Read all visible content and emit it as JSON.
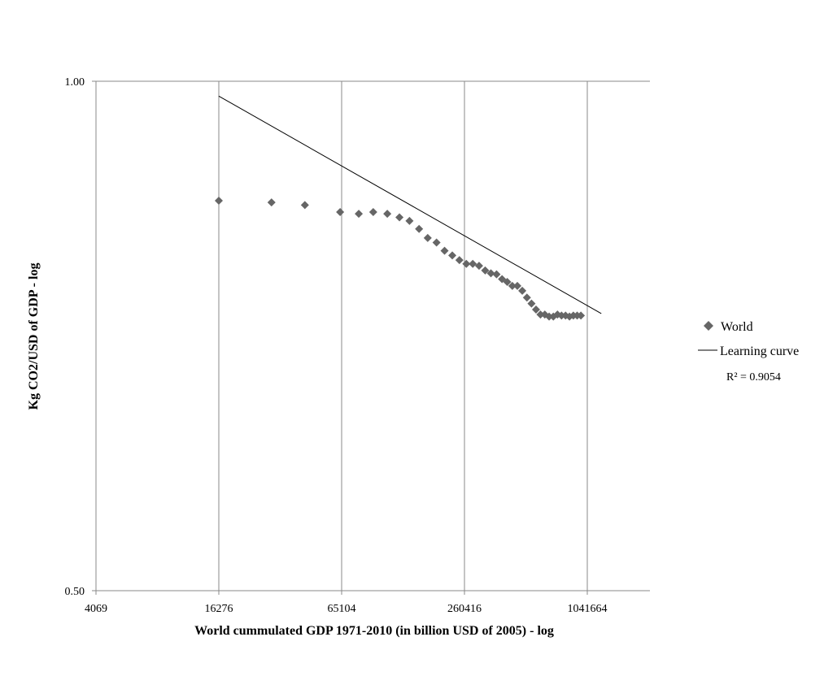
{
  "chart_data": {
    "type": "scatter",
    "title": "",
    "xlabel": "World cummulated GDP 1971-2010 (in billion USD of 2005) - log",
    "ylabel": "Kg CO2/USD of GDP - log",
    "x_scale": "log",
    "y_scale": "log",
    "xlim": [
      4069,
      1041664
    ],
    "ylim": [
      0.5,
      1.0
    ],
    "x_ticks": [
      "4069",
      "16276",
      "65104",
      "260416",
      "1041664"
    ],
    "y_ticks": [
      "1.00",
      "0.50"
    ],
    "grid": "vertical",
    "legend_position": "right",
    "series": [
      {
        "name": "World",
        "type": "scatter",
        "marker": "diamond",
        "color": "#666666",
        "points": [
          [
            16276,
            0.85
          ],
          [
            29500,
            0.848
          ],
          [
            43000,
            0.845
          ],
          [
            64000,
            0.837
          ],
          [
            79000,
            0.835
          ],
          [
            93000,
            0.837
          ],
          [
            109000,
            0.835
          ],
          [
            125000,
            0.831
          ],
          [
            140000,
            0.827
          ],
          [
            156000,
            0.818
          ],
          [
            172000,
            0.808
          ],
          [
            190000,
            0.803
          ],
          [
            208000,
            0.794
          ],
          [
            227000,
            0.789
          ],
          [
            246000,
            0.784
          ],
          [
            266000,
            0.78
          ],
          [
            286000,
            0.78
          ],
          [
            307000,
            0.778
          ],
          [
            329000,
            0.773
          ],
          [
            351000,
            0.77
          ],
          [
            374000,
            0.769
          ],
          [
            398000,
            0.764
          ],
          [
            422000,
            0.761
          ],
          [
            447000,
            0.757
          ],
          [
            473000,
            0.757
          ],
          [
            500000,
            0.752
          ],
          [
            527000,
            0.745
          ],
          [
            555000,
            0.739
          ],
          [
            584000,
            0.733
          ],
          [
            614000,
            0.728
          ],
          [
            645000,
            0.728
          ],
          [
            677000,
            0.726
          ],
          [
            710000,
            0.726
          ],
          [
            744000,
            0.728
          ],
          [
            779000,
            0.727
          ],
          [
            815000,
            0.727
          ],
          [
            852000,
            0.726
          ],
          [
            890000,
            0.727
          ],
          [
            929000,
            0.727
          ],
          [
            969000,
            0.727
          ]
        ]
      },
      {
        "name": "Learning curve",
        "type": "line",
        "color": "#000000",
        "x_range": [
          16276,
          1220000
        ],
        "y_range": [
          0.98,
          0.729
        ]
      }
    ],
    "annotations": [
      "R² = 0.9054"
    ]
  }
}
